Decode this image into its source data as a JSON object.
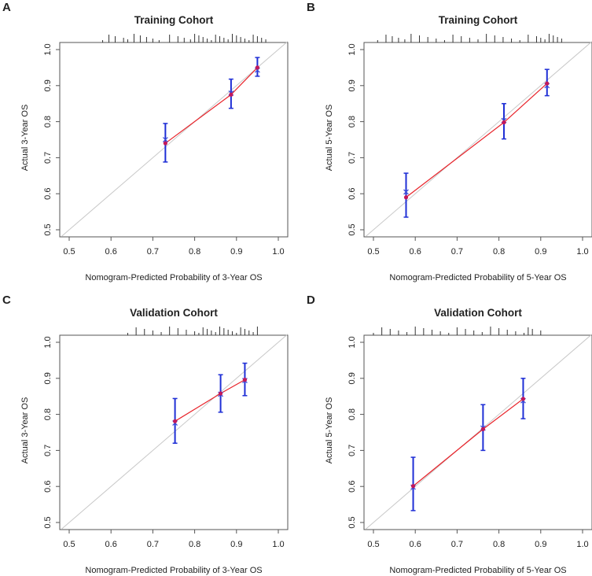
{
  "colors": {
    "frame": "#555555",
    "diagonal": "#c8c8c8",
    "fit_line": "#e8232a",
    "error_bar": "#1f2fd6",
    "point": "#c2185b",
    "point_x": "#3a4bd6"
  },
  "chart_data": [
    {
      "letter": "A",
      "type": "line",
      "title": "Training Cohort",
      "xlabel": "Nomogram-Predicted Probability of 3-Year OS",
      "ylabel": "Actual 3-Year OS",
      "xlim": [
        0.5,
        1.0
      ],
      "ylim": [
        0.5,
        1.0
      ],
      "x_ticks": [
        "0.5",
        "0.6",
        "0.7",
        "0.8",
        "0.9",
        "1.0"
      ],
      "y_ticks": [
        "0.5",
        "0.6",
        "0.7",
        "0.8",
        "0.9",
        "1.0"
      ],
      "series": [
        {
          "name": "observed",
          "x": [
            0.73,
            0.887,
            0.95
          ],
          "y": [
            0.74,
            0.875,
            0.95
          ]
        },
        {
          "name": "lower",
          "x": [
            0.73,
            0.887,
            0.95
          ],
          "y": [
            0.688,
            0.837,
            0.926
          ]
        },
        {
          "name": "upper",
          "x": [
            0.73,
            0.887,
            0.95
          ],
          "y": [
            0.795,
            0.918,
            0.978
          ]
        },
        {
          "name": "bias-corrected",
          "x": [
            0.73,
            0.887,
            0.95
          ],
          "y": [
            0.75,
            0.879,
            0.943
          ]
        }
      ],
      "rug": [
        0.58,
        0.595,
        0.61,
        0.63,
        0.64,
        0.655,
        0.67,
        0.685,
        0.7,
        0.715,
        0.74,
        0.76,
        0.775,
        0.79,
        0.8,
        0.81,
        0.82,
        0.83,
        0.84,
        0.85,
        0.86,
        0.87,
        0.88,
        0.89,
        0.9,
        0.91,
        0.92,
        0.93,
        0.94,
        0.95,
        0.96,
        0.97
      ]
    },
    {
      "letter": "B",
      "type": "line",
      "title": "Training Cohort",
      "xlabel": "Nomogram-Predicted Probability of 5-Year OS",
      "ylabel": "Actual 5-Year OS",
      "xlim": [
        0.5,
        1.0
      ],
      "ylim": [
        0.5,
        1.0
      ],
      "x_ticks": [
        "0.5",
        "0.6",
        "0.7",
        "0.8",
        "0.9",
        "1.0"
      ],
      "y_ticks": [
        "0.5",
        "0.6",
        "0.7",
        "0.8",
        "0.9",
        "1.0"
      ],
      "series": [
        {
          "name": "observed",
          "x": [
            0.578,
            0.812,
            0.915
          ],
          "y": [
            0.59,
            0.798,
            0.906
          ]
        },
        {
          "name": "lower",
          "x": [
            0.578,
            0.812,
            0.915
          ],
          "y": [
            0.535,
            0.752,
            0.872
          ]
        },
        {
          "name": "upper",
          "x": [
            0.578,
            0.812,
            0.915
          ],
          "y": [
            0.657,
            0.85,
            0.945
          ]
        },
        {
          "name": "bias-corrected",
          "x": [
            0.578,
            0.812,
            0.915
          ],
          "y": [
            0.605,
            0.803,
            0.9
          ]
        }
      ],
      "rug": [
        0.51,
        0.53,
        0.545,
        0.56,
        0.575,
        0.59,
        0.61,
        0.63,
        0.65,
        0.67,
        0.69,
        0.71,
        0.73,
        0.75,
        0.77,
        0.79,
        0.81,
        0.83,
        0.85,
        0.87,
        0.89,
        0.9,
        0.91,
        0.92,
        0.93,
        0.94,
        0.95
      ]
    },
    {
      "letter": "C",
      "type": "line",
      "title": "Validation Cohort",
      "xlabel": "Nomogram-Predicted Probability of 3-Year OS",
      "ylabel": "Actual 3-Year OS",
      "xlim": [
        0.5,
        1.0
      ],
      "ylim": [
        0.5,
        1.0
      ],
      "x_ticks": [
        "0.5",
        "0.6",
        "0.7",
        "0.8",
        "0.9",
        "1.0"
      ],
      "y_ticks": [
        "0.5",
        "0.6",
        "0.7",
        "0.8",
        "0.9",
        "1.0"
      ],
      "series": [
        {
          "name": "observed",
          "x": [
            0.753,
            0.862,
            0.92
          ],
          "y": [
            0.781,
            0.858,
            0.896
          ]
        },
        {
          "name": "lower",
          "x": [
            0.753,
            0.862,
            0.92
          ],
          "y": [
            0.72,
            0.806,
            0.852
          ]
        },
        {
          "name": "upper",
          "x": [
            0.753,
            0.862,
            0.92
          ],
          "y": [
            0.844,
            0.91,
            0.942
          ]
        },
        {
          "name": "bias-corrected",
          "x": [
            0.753,
            0.862,
            0.92
          ],
          "y": [
            0.776,
            0.856,
            0.894
          ]
        }
      ],
      "rug": [
        0.64,
        0.66,
        0.68,
        0.7,
        0.72,
        0.74,
        0.76,
        0.78,
        0.8,
        0.81,
        0.82,
        0.83,
        0.84,
        0.85,
        0.86,
        0.87,
        0.88,
        0.89,
        0.9,
        0.91,
        0.92,
        0.93,
        0.94,
        0.95
      ]
    },
    {
      "letter": "D",
      "type": "line",
      "title": "Validation Cohort",
      "xlabel": "Nomogram-Predicted Probability of 5-Year OS",
      "ylabel": "Actual 5-Year OS",
      "xlim": [
        0.5,
        1.0
      ],
      "ylim": [
        0.5,
        1.0
      ],
      "x_ticks": [
        "0.5",
        "0.6",
        "0.7",
        "0.8",
        "0.9",
        "1.0"
      ],
      "y_ticks": [
        "0.5",
        "0.6",
        "0.7",
        "0.8",
        "0.9",
        "1.0"
      ],
      "series": [
        {
          "name": "observed",
          "x": [
            0.595,
            0.762,
            0.858
          ],
          "y": [
            0.601,
            0.759,
            0.843
          ]
        },
        {
          "name": "lower",
          "x": [
            0.595,
            0.762,
            0.858
          ],
          "y": [
            0.533,
            0.7,
            0.788
          ]
        },
        {
          "name": "upper",
          "x": [
            0.595,
            0.762,
            0.858
          ],
          "y": [
            0.681,
            0.827,
            0.9
          ]
        },
        {
          "name": "bias-corrected",
          "x": [
            0.595,
            0.762,
            0.858
          ],
          "y": [
            0.598,
            0.762,
            0.838
          ]
        }
      ],
      "rug": [
        0.5,
        0.52,
        0.54,
        0.56,
        0.58,
        0.6,
        0.62,
        0.64,
        0.66,
        0.68,
        0.7,
        0.72,
        0.74,
        0.76,
        0.78,
        0.8,
        0.82,
        0.84,
        0.86,
        0.87,
        0.88,
        0.9
      ]
    }
  ]
}
